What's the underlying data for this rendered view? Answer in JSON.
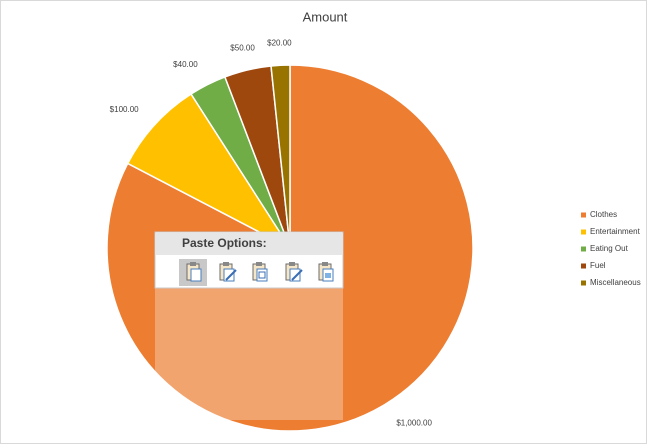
{
  "chart_data": {
    "type": "pie",
    "title": "Amount",
    "categories": [
      "Clothes",
      "Entertainment",
      "Eating Out",
      "Fuel",
      "Miscellaneous"
    ],
    "values": [
      1000,
      100,
      40,
      50,
      20
    ],
    "value_labels": [
      "$1,000.00",
      "$100.00",
      "$40.00",
      "$50.00",
      "$20.00"
    ],
    "colors": [
      "#ed7d31",
      "#ffc000",
      "#70ad47",
      "#9e480e",
      "#997300"
    ],
    "legend": "right"
  },
  "paste_options": {
    "title": "Paste Options:"
  }
}
